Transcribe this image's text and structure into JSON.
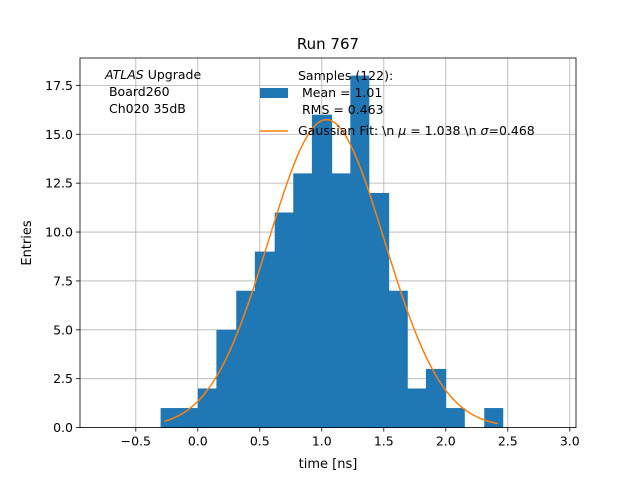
{
  "chart_data": {
    "type": "bar",
    "title": "Run 767",
    "xlabel": "time [ns]",
    "ylabel": "Entries",
    "xlim": [
      -0.95,
      3.05
    ],
    "ylim": [
      0,
      18.9
    ],
    "xticks": [
      -0.5,
      0.0,
      0.5,
      1.0,
      1.5,
      2.0,
      2.5,
      3.0
    ],
    "xtick_labels": [
      "−0.5",
      "0.0",
      "0.5",
      "1.0",
      "1.5",
      "2.0",
      "2.5",
      "3.0"
    ],
    "yticks": [
      0,
      2.5,
      5,
      7.5,
      10,
      12.5,
      15,
      17.5
    ],
    "ytick_labels": [
      "0.0",
      "2.5",
      "5.0",
      "7.5",
      "10.0",
      "12.5",
      "15.0",
      "17.5"
    ],
    "grid": true,
    "bin_edges": [
      -0.3,
      -0.14,
      0.0,
      0.15,
      0.31,
      0.46,
      0.62,
      0.77,
      0.92,
      1.08,
      1.23,
      1.38,
      1.54,
      1.69,
      1.84,
      2.0,
      2.15,
      2.31,
      2.46
    ],
    "counts": [
      1,
      1,
      2,
      5,
      7,
      9,
      11,
      13,
      16,
      13,
      18,
      12,
      7,
      2,
      3,
      1,
      0,
      1
    ],
    "series": [
      {
        "kind": "histogram",
        "color": "#1f77b4",
        "legend": "Samples (122):\n Mean = 1.01\n RMS = 0.463"
      },
      {
        "kind": "line",
        "color": "#ff7f0e",
        "legend": "Gaussian Fit: \\n μ = 1.038 \\n σ=0.468",
        "mu": 1.038,
        "sigma": 0.468,
        "amplitude": 15.75,
        "x_range": [
          -0.27,
          2.42
        ]
      }
    ],
    "legend_placement": "top-right"
  },
  "annotation": {
    "line1_italic": "ATLAS",
    "line1_rest": " Upgrade",
    "line2": " Board260",
    "line3": " Ch020 35dB"
  },
  "legend": {
    "hist_line1": "Samples (122):",
    "hist_line2": " Mean = 1.01",
    "hist_line3": " RMS = 0.463",
    "fit_prefix": "Gaussian Fit: \\n ",
    "fit_mu_sym": "μ",
    "fit_mid": " = 1.038 \\n ",
    "fit_sigma_sym": "σ",
    "fit_suffix": "=0.468"
  }
}
